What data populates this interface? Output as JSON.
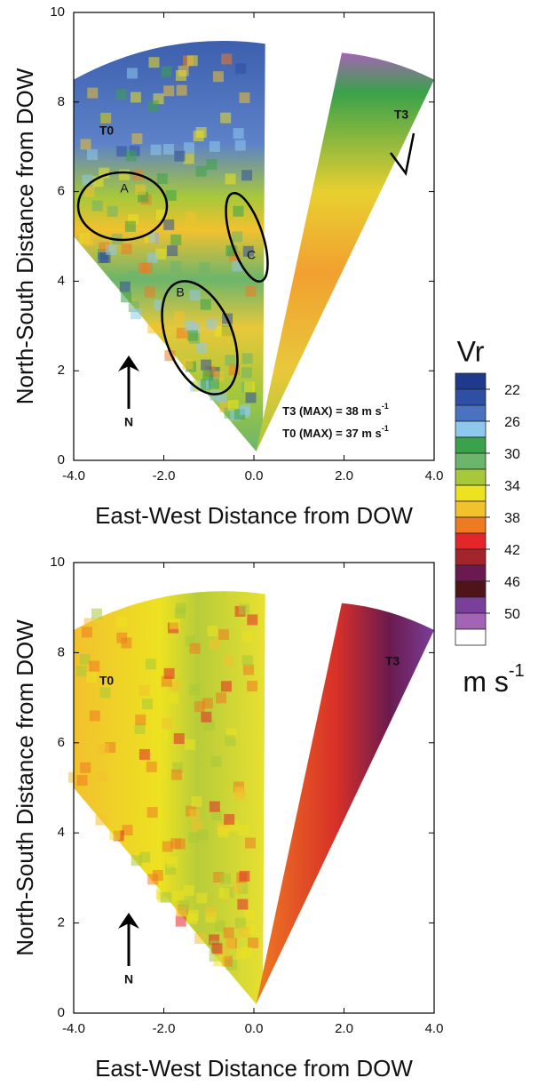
{
  "chart_data": [
    {
      "type": "heatmap",
      "xlabel": "East-West Distance from DOW",
      "ylabel": "North-South Distance from DOW",
      "xlim": [
        -4,
        4
      ],
      "ylim": [
        0,
        10
      ],
      "xticks": [
        {
          "value": -4,
          "label": "-4.0"
        },
        {
          "value": -2,
          "label": "-2.0"
        },
        {
          "value": 0,
          "label": "0.0"
        },
        {
          "value": 2,
          "label": "2.0"
        },
        {
          "value": 4,
          "label": "4.0"
        }
      ],
      "yticks": [
        0,
        2,
        4,
        6,
        8,
        10
      ],
      "annotations": [
        "T0",
        "T3",
        "A",
        "B",
        "C",
        "N"
      ],
      "notes": [
        {
          "text": "T3 (MAX) = 38 m s",
          "sup": "-1"
        },
        {
          "text": "T0 (MAX) = 37 m s",
          "sup": "-1"
        }
      ]
    },
    {
      "type": "heatmap",
      "xlabel": "East-West Distance from DOW",
      "ylabel": "North-South Distance from DOW",
      "xlim": [
        -4,
        4
      ],
      "ylim": [
        0,
        10
      ],
      "xticks": [
        {
          "value": -4,
          "label": "-4.0"
        },
        {
          "value": -2,
          "label": "-2.0"
        },
        {
          "value": 0,
          "label": "0.0"
        },
        {
          "value": 2,
          "label": "2.0"
        },
        {
          "value": 4,
          "label": "4.0"
        }
      ],
      "yticks": [
        0,
        2,
        4,
        6,
        8,
        10
      ],
      "annotations": [
        "T0",
        "T3",
        "N"
      ]
    }
  ],
  "colorbar": {
    "title": "Vr",
    "unit": "m s",
    "unit_sup": "-1",
    "ticks": [
      22,
      26,
      30,
      34,
      38,
      42,
      46,
      50
    ],
    "colors": [
      "#1f3a8a",
      "#2e4fa3",
      "#4a72c0",
      "#8ec8ec",
      "#3aa24a",
      "#6cb56c",
      "#a7c83a",
      "#ede221",
      "#f2c12e",
      "#ee7a22",
      "#e3262a",
      "#a3242b",
      "#6a1a4e",
      "#4f1417",
      "#7a3f9a",
      "#a464b4",
      "#ffffff"
    ]
  }
}
